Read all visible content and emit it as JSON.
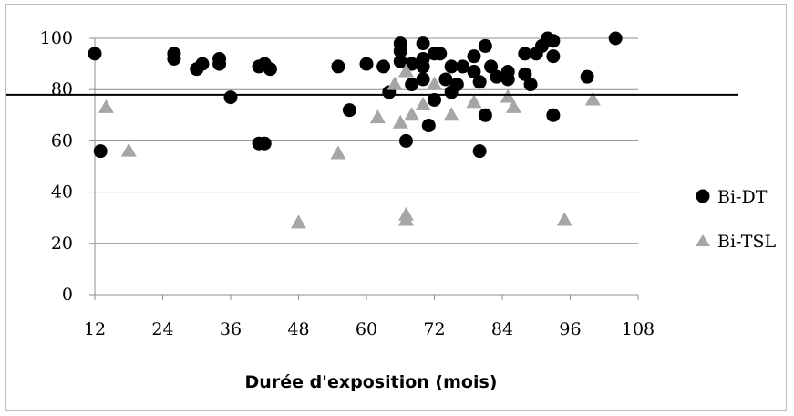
{
  "chart_data": {
    "type": "scatter",
    "title": "",
    "xlabel": "Durée d'exposition (mois)",
    "ylabel": "",
    "xlim": [
      12,
      108
    ],
    "ylim": [
      0,
      100
    ],
    "x_ticks": [
      "12",
      "24",
      "36",
      "48",
      "60",
      "72",
      "84",
      "96",
      "108"
    ],
    "y_ticks": [
      "0",
      "20",
      "40",
      "60",
      "80",
      "100"
    ],
    "grid": "horizontal",
    "legend_position": "right",
    "reference_line": {
      "y": 78,
      "color": "#000000"
    },
    "series": [
      {
        "name": "Bi-DT",
        "marker": "circle",
        "color": "#000000",
        "points": [
          [
            12,
            94
          ],
          [
            13,
            56
          ],
          [
            26,
            94
          ],
          [
            26,
            92
          ],
          [
            30,
            88
          ],
          [
            31,
            90
          ],
          [
            34,
            92
          ],
          [
            34,
            90
          ],
          [
            36,
            77
          ],
          [
            41,
            89
          ],
          [
            41,
            59
          ],
          [
            42,
            90
          ],
          [
            42,
            59
          ],
          [
            43,
            88
          ],
          [
            55,
            89
          ],
          [
            57,
            72
          ],
          [
            60,
            90
          ],
          [
            63,
            89
          ],
          [
            64,
            79
          ],
          [
            66,
            98
          ],
          [
            66,
            95
          ],
          [
            66,
            91
          ],
          [
            67,
            60
          ],
          [
            68,
            90
          ],
          [
            68,
            82
          ],
          [
            70,
            98
          ],
          [
            70,
            92
          ],
          [
            70,
            89
          ],
          [
            70,
            84
          ],
          [
            71,
            66
          ],
          [
            72,
            76
          ],
          [
            72,
            94
          ],
          [
            73,
            94
          ],
          [
            74,
            84
          ],
          [
            75,
            89
          ],
          [
            75,
            79
          ],
          [
            76,
            82
          ],
          [
            77,
            89
          ],
          [
            79,
            93
          ],
          [
            79,
            87
          ],
          [
            80,
            83
          ],
          [
            80,
            56
          ],
          [
            81,
            97
          ],
          [
            81,
            70
          ],
          [
            82,
            89
          ],
          [
            83,
            85
          ],
          [
            85,
            87
          ],
          [
            85,
            84
          ],
          [
            88,
            86
          ],
          [
            88,
            94
          ],
          [
            89,
            82
          ],
          [
            90,
            94
          ],
          [
            91,
            97
          ],
          [
            92,
            100
          ],
          [
            93,
            93
          ],
          [
            93,
            99
          ],
          [
            93,
            70
          ],
          [
            99,
            85
          ],
          [
            104,
            100
          ]
        ]
      },
      {
        "name": "Bi-TSL",
        "marker": "triangle",
        "color": "#a6a6a6",
        "points": [
          [
            14,
            73
          ],
          [
            18,
            56
          ],
          [
            48,
            28
          ],
          [
            55,
            55
          ],
          [
            62,
            69
          ],
          [
            65,
            82
          ],
          [
            66,
            67
          ],
          [
            67,
            87
          ],
          [
            67,
            31
          ],
          [
            67,
            29
          ],
          [
            68,
            70
          ],
          [
            70,
            74
          ],
          [
            72,
            82
          ],
          [
            75,
            70
          ],
          [
            79,
            75
          ],
          [
            85,
            77
          ],
          [
            86,
            73
          ],
          [
            95,
            29
          ],
          [
            100,
            76
          ]
        ]
      }
    ]
  }
}
